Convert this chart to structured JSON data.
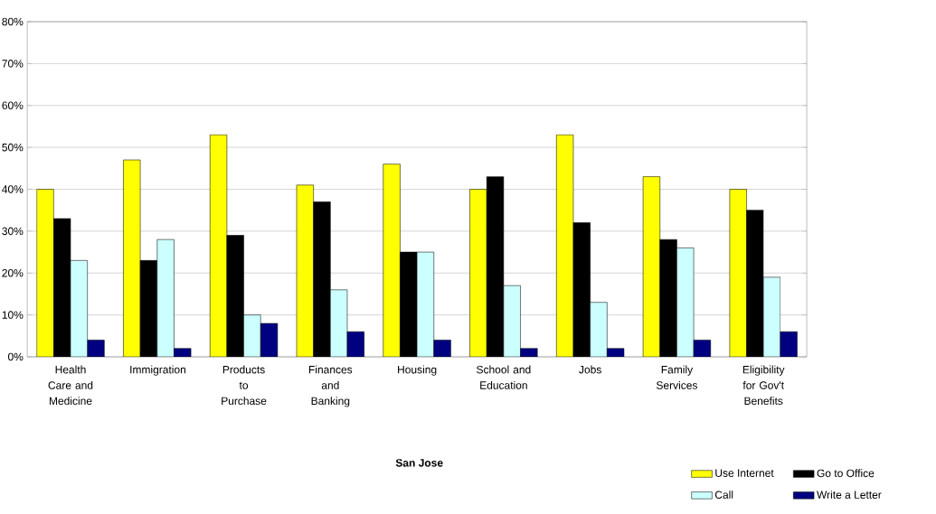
{
  "chart_data": {
    "type": "bar",
    "title": "San Jose",
    "categories": [
      "Health Care and Medicine",
      "Immigration",
      "Products to Purchase",
      "Finances and Banking",
      "Housing",
      "School and Education",
      "Jobs",
      "Family Services",
      "Eligibility for Gov't Benefits"
    ],
    "series": [
      {
        "name": "Use Internet",
        "color": "#ffff00",
        "values": [
          40,
          47,
          53,
          41,
          46,
          40,
          53,
          43,
          40
        ]
      },
      {
        "name": "Go to Office",
        "color": "#000000",
        "values": [
          33,
          23,
          29,
          37,
          25,
          43,
          32,
          28,
          35
        ]
      },
      {
        "name": "Call",
        "color": "#ccffff",
        "values": [
          23,
          28,
          10,
          16,
          25,
          17,
          13,
          26,
          19
        ]
      },
      {
        "name": "Write a Letter",
        "color": "#000080",
        "values": [
          4,
          2,
          8,
          6,
          4,
          2,
          2,
          4,
          6
        ]
      }
    ],
    "ylim": [
      0,
      80
    ],
    "yticks": [
      {
        "value": 0,
        "label": "0%"
      },
      {
        "value": 10,
        "label": "10%"
      },
      {
        "value": 20,
        "label": "20%"
      },
      {
        "value": 30,
        "label": "30%"
      },
      {
        "value": 40,
        "label": "40%"
      },
      {
        "value": 50,
        "label": "50%"
      },
      {
        "value": 60,
        "label": "60%"
      },
      {
        "value": 70,
        "label": "70%"
      },
      {
        "value": 80,
        "label": "80%"
      }
    ],
    "grid": "y",
    "legend": "bottom right"
  }
}
